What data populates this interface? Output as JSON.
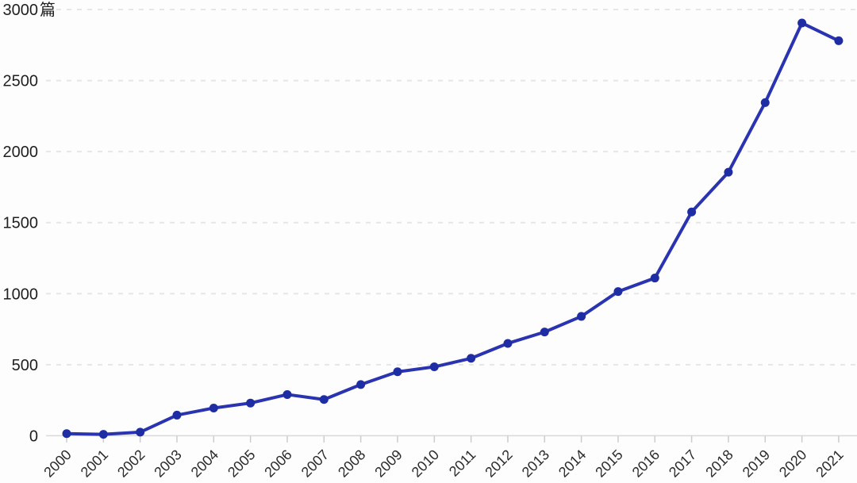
{
  "chart_data": {
    "type": "line",
    "title": "",
    "xlabel": "",
    "ylabel": "",
    "unit_label": "篇",
    "categories": [
      "2000",
      "2001",
      "2002",
      "2003",
      "2004",
      "2005",
      "2006",
      "2007",
      "2008",
      "2009",
      "2010",
      "2011",
      "2012",
      "2013",
      "2014",
      "2015",
      "2016",
      "2017",
      "2018",
      "2019",
      "2020",
      "2021"
    ],
    "values": [
      15,
      10,
      25,
      145,
      195,
      230,
      290,
      255,
      360,
      450,
      485,
      545,
      650,
      730,
      840,
      1015,
      1110,
      1575,
      1855,
      2345,
      2905,
      2780
    ],
    "y_ticks": [
      0,
      500,
      1000,
      1500,
      2000,
      2500,
      3000
    ],
    "y_tick_labels": [
      "0",
      "500",
      "1000",
      "1500",
      "2000",
      "2500",
      "3000"
    ],
    "ylim": [
      0,
      3000
    ],
    "legend": [],
    "grid": "horizontal-dashed",
    "colors": {
      "line": "#2a34b0",
      "marker": "#1f2da5",
      "grid_line": "#e6e6e6",
      "axis_line": "#d9d9d9",
      "tick_mark": "#cccccc",
      "y_label_text": "#1f1f1f",
      "x_label_text": "#2b2b2b",
      "background": "#fdfdfd"
    }
  }
}
